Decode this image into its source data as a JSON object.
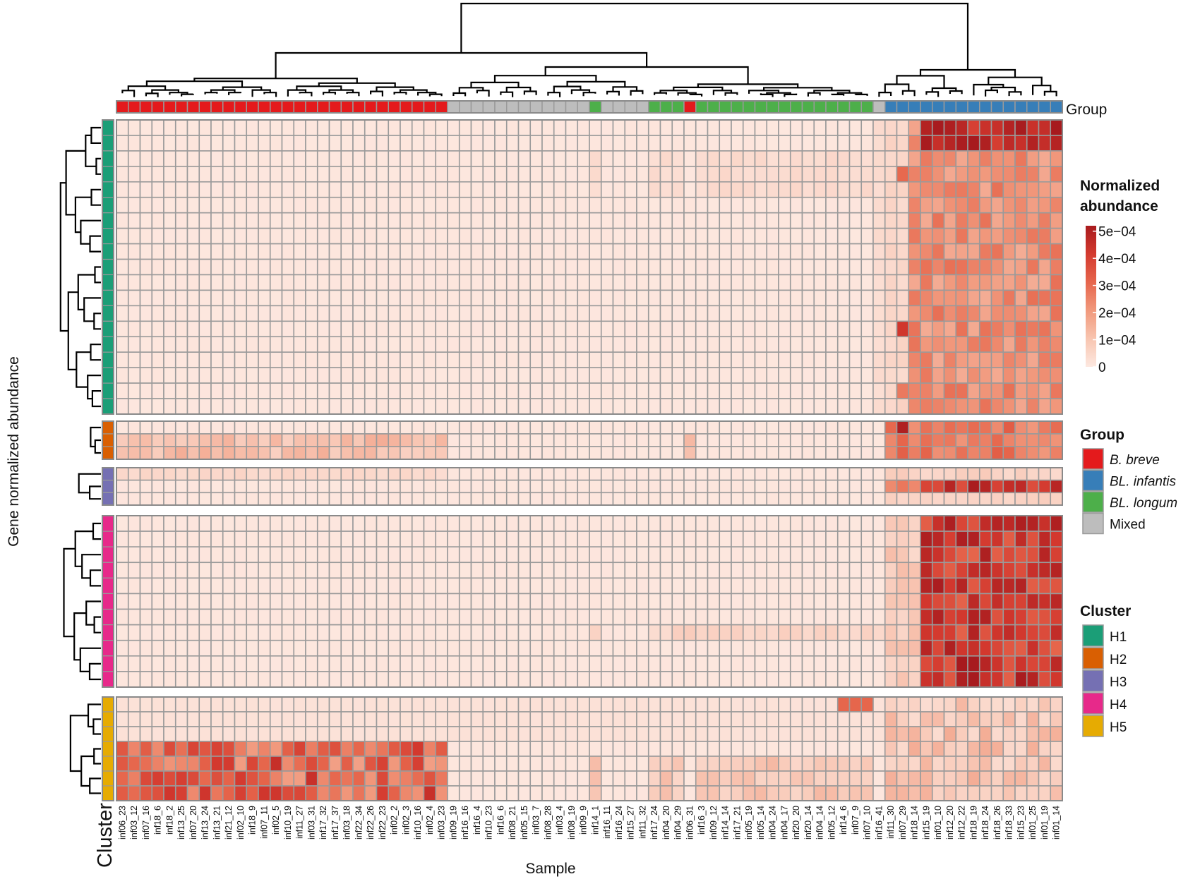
{
  "chart_data": {
    "type": "heatmap",
    "title": "",
    "xlabel": "Sample",
    "ylabel": "Gene normalized abundance",
    "top_annotation_label": "Group",
    "left_annotation_label": "Cluster",
    "samples": [
      "inf06_23",
      "inf03_12",
      "inf07_16",
      "inf18_6",
      "inf18_2",
      "inf13_25",
      "inf07_20",
      "inf13_24",
      "inf13_21",
      "inf21_12",
      "inf02_10",
      "inf18_9",
      "inf07_11",
      "inf02_5",
      "inf10_19",
      "inf11_27",
      "inf03_31",
      "inf17_32",
      "inf17_37",
      "inf03_18",
      "inf22_34",
      "inf22_26",
      "inf22_23",
      "inf02_2",
      "inf02_3",
      "inf10_16",
      "inf02_4",
      "inf03_23",
      "inf09_19",
      "inf16_16",
      "inf16_4",
      "inf10_23",
      "inf16_6",
      "inf08_21",
      "inf05_15",
      "inf03_7",
      "inf08_28",
      "inf03_4",
      "inf08_19",
      "inf09_9",
      "inf14_1",
      "inf16_11",
      "inf16_24",
      "inf15_27",
      "inf11_32",
      "inf17_24",
      "inf04_20",
      "inf04_29",
      "inf06_31",
      "inf16_3",
      "inf09_12",
      "inf14_14",
      "inf17_21",
      "inf05_19",
      "inf05_14",
      "inf04_24",
      "inf04_17",
      "inf20_20",
      "inf20_14",
      "inf04_14",
      "inf05_12",
      "inf14_6",
      "inf07_9",
      "inf07_10",
      "inf16_41",
      "inf11_30",
      "inf07_29",
      "inf18_14",
      "inf15_19",
      "inf01_10",
      "inf12_20",
      "inf12_22",
      "inf18_19",
      "inf18_24",
      "inf18_26",
      "inf18_33",
      "inf15_23",
      "inf01_25",
      "inf01_19",
      "inf01_14"
    ],
    "sample_groups": [
      "B. breve",
      "B. breve",
      "B. breve",
      "B. breve",
      "B. breve",
      "B. breve",
      "B. breve",
      "B. breve",
      "B. breve",
      "B. breve",
      "B. breve",
      "B. breve",
      "B. breve",
      "B. breve",
      "B. breve",
      "B. breve",
      "B. breve",
      "B. breve",
      "B. breve",
      "B. breve",
      "B. breve",
      "B. breve",
      "B. breve",
      "B. breve",
      "B. breve",
      "B. breve",
      "B. breve",
      "B. breve",
      "Mixed",
      "Mixed",
      "Mixed",
      "Mixed",
      "Mixed",
      "Mixed",
      "Mixed",
      "Mixed",
      "Mixed",
      "Mixed",
      "Mixed",
      "Mixed",
      "BL. longum",
      "Mixed",
      "Mixed",
      "Mixed",
      "Mixed",
      "BL. longum",
      "BL. longum",
      "BL. longum",
      "B. breve",
      "BL. longum",
      "BL. longum",
      "BL. longum",
      "BL. longum",
      "BL. longum",
      "BL. longum",
      "BL. longum",
      "BL. longum",
      "BL. longum",
      "BL. longum",
      "BL. longum",
      "BL. longum",
      "BL. longum",
      "BL. longum",
      "BL. longum",
      "Mixed",
      "BL. infantis",
      "BL. infantis",
      "BL. infantis",
      "BL. infantis",
      "BL. infantis",
      "BL. infantis",
      "BL. infantis",
      "BL. infantis",
      "BL. infantis",
      "BL. infantis",
      "BL. infantis",
      "BL. infantis",
      "BL. infantis",
      "BL. infantis",
      "BL. infantis"
    ],
    "clusters": [
      {
        "name": "H1",
        "rows": 19,
        "profile": "high in BL. infantis samples"
      },
      {
        "name": "H2",
        "rows": 3,
        "profile": "low in B. breve, high in BL. infantis"
      },
      {
        "name": "H3",
        "rows": 3,
        "profile": "low overall, high in BL. infantis"
      },
      {
        "name": "H4",
        "rows": 11,
        "profile": "very high in BL. infantis"
      },
      {
        "name": "H5",
        "rows": 7,
        "profile": "high in B. breve (lower rows), moderate elsewhere"
      }
    ],
    "color_scale": {
      "label": "Normalized abundance",
      "ticks": [
        "5e−04",
        "4e−04",
        "3e−04",
        "2e−04",
        "1e−04",
        "0"
      ],
      "tick_values": [
        0.0005,
        0.0004,
        0.0003,
        0.0002,
        0.0001,
        0
      ],
      "colors": [
        "#fde8e0",
        "#f8c5b0",
        "#f1997c",
        "#e6654c",
        "#d33a2f",
        "#a91b1e"
      ]
    },
    "legend_group": {
      "title": "Group",
      "items": [
        {
          "label": "B. breve",
          "color": "#e41a1c",
          "italic": true
        },
        {
          "label": "BL. infantis",
          "color": "#377eb8",
          "italic": true
        },
        {
          "label": "BL. longum",
          "color": "#4daf4a",
          "italic": true
        },
        {
          "label": "Mixed",
          "color": "#bdbdbd",
          "italic": false
        }
      ]
    },
    "legend_cluster": {
      "title": "Cluster",
      "items": [
        {
          "label": "H1",
          "color": "#1b9e77"
        },
        {
          "label": "H2",
          "color": "#d95f02"
        },
        {
          "label": "H3",
          "color": "#7570b3"
        },
        {
          "label": "H4",
          "color": "#e7298a"
        },
        {
          "label": "H5",
          "color": "#e6ab02"
        }
      ]
    }
  }
}
